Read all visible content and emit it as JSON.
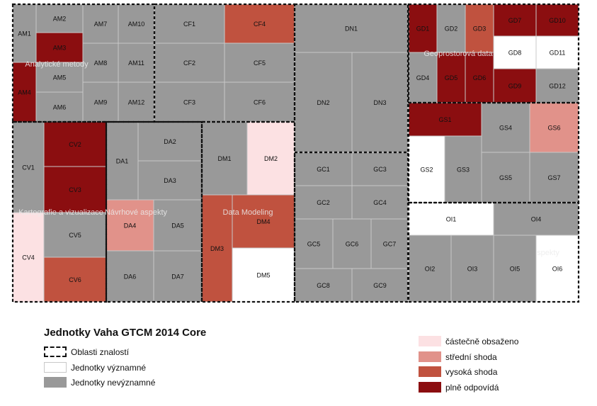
{
  "colors": {
    "nevyznamne": "#999999",
    "vyznamne": "#ffffff",
    "castecne": "#fce1e3",
    "stredni": "#e1928a",
    "vysoka": "#c0523f",
    "plne": "#8b0e10",
    "unit_border": "#c8c8c8",
    "area_border": "#111111"
  },
  "units": {
    "AM1": "nevyznamne",
    "AM2": "nevyznamne",
    "AM3": "plne",
    "AM4": "plne",
    "AM5": "nevyznamne",
    "AM6": "nevyznamne",
    "AM7": "nevyznamne",
    "AM8": "nevyznamne",
    "AM9": "nevyznamne",
    "AM10": "nevyznamne",
    "AM11": "nevyznamne",
    "AM12": "nevyznamne",
    "CF1": "nevyznamne",
    "CF2": "nevyznamne",
    "CF3": "nevyznamne",
    "CF4": "vysoka",
    "CF5": "nevyznamne",
    "CF6": "nevyznamne",
    "DN1": "nevyznamne",
    "DN2": "nevyznamne",
    "DN3": "nevyznamne",
    "GD1": "plne",
    "GD2": "nevyznamne",
    "GD3": "vysoka",
    "GD4": "nevyznamne",
    "GD5": "plne",
    "GD6": "plne",
    "GD7": "plne",
    "GD8": "vyznamne",
    "GD9": "plne",
    "GD10": "plne",
    "GD11": "vyznamne",
    "GD12": "nevyznamne",
    "CV1": "nevyznamne",
    "CV2": "plne",
    "CV3": "plne",
    "CV4": "castecne",
    "CV5": "nevyznamne",
    "CV6": "vysoka",
    "DA1": "nevyznamne",
    "DA2": "nevyznamne",
    "DA3": "nevyznamne",
    "DA4": "stredni",
    "DA5": "nevyznamne",
    "DA6": "nevyznamne",
    "DA7": "nevyznamne",
    "DM1": "nevyznamne",
    "DM2": "castecne",
    "DM3": "vysoka",
    "DM4": "vysoka",
    "DM5": "vyznamne",
    "GC1": "nevyznamne",
    "GC2": "nevyznamne",
    "GC3": "nevyznamne",
    "GC4": "nevyznamne",
    "GC5": "nevyznamne",
    "GC6": "nevyznamne",
    "GC7": "nevyznamne",
    "GC8": "nevyznamne",
    "GC9": "nevyznamne",
    "GS1": "plne",
    "GS2": "vyznamne",
    "GS3": "nevyznamne",
    "GS4": "nevyznamne",
    "GS5": "nevyznamne",
    "GS6": "stredni",
    "GS7": "nevyznamne",
    "OI1": "vyznamne",
    "OI2": "nevyznamne",
    "OI3": "nevyznamne",
    "OI4": "nevyznamne",
    "OI5": "nevyznamne",
    "OI6": "vyznamne"
  },
  "area_labels": {
    "AM": "Analytické metody",
    "GD": "Geoprostorová data",
    "CV": "Kartografie a vizualizace",
    "DA": "Návrhové aspekty",
    "DM": "Data Modeling",
    "OI": "spekty"
  },
  "legend": {
    "title": "Jednotky Vaha GTCM 2014 Core",
    "left": [
      {
        "label": "Oblasti znalostí",
        "style": "area"
      },
      {
        "label": "Jednotky významné",
        "style": "vyznamne"
      },
      {
        "label": "Jednotky nevýznamné",
        "style": "nevyznamne"
      }
    ],
    "right": [
      {
        "label": "částečně obsaženo",
        "style": "castecne"
      },
      {
        "label": "střední shoda",
        "style": "stredni"
      },
      {
        "label": "vysoká shoda",
        "style": "vysoka"
      },
      {
        "label": "plně odpovídá",
        "style": "plne"
      }
    ]
  }
}
